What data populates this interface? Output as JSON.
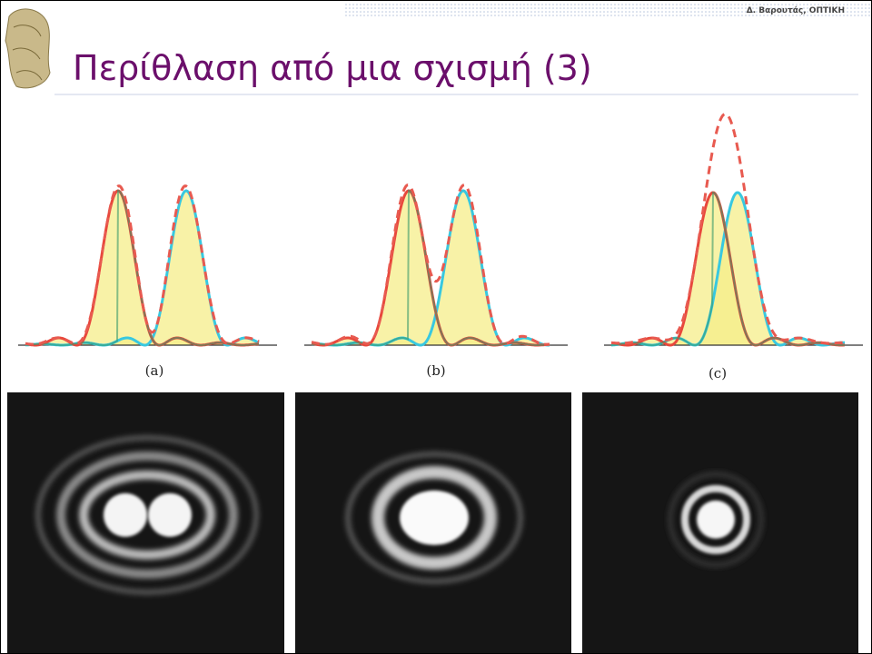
{
  "header": {
    "author": "Δ. Βαρουτάς, ΟΠΤΙΚΗ",
    "title": "Περίθλαση από μια σχισμή (3)"
  },
  "figures": [
    {
      "label": "(a)"
    },
    {
      "label": "(b)"
    },
    {
      "label": "(c)"
    }
  ]
}
